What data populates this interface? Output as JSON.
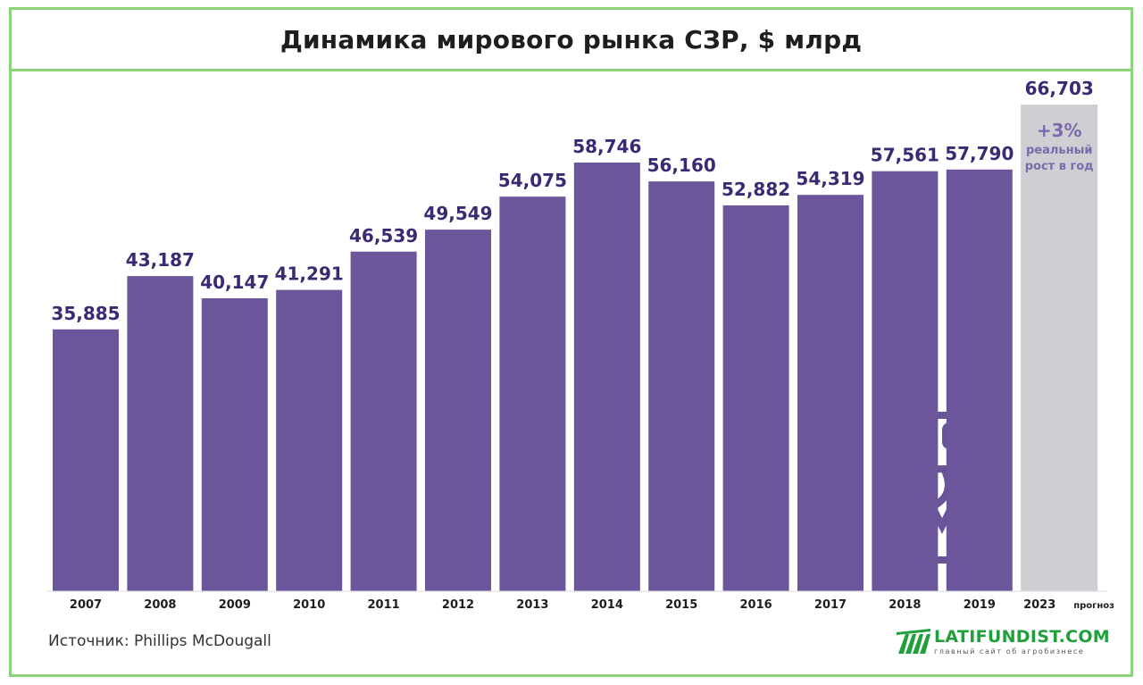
{
  "chart_data": {
    "type": "bar",
    "title": "Динамика мирового рынка СЗР, $ млрд",
    "categories": [
      "2007",
      "2008",
      "2009",
      "2010",
      "2011",
      "2012",
      "2013",
      "2014",
      "2015",
      "2016",
      "2017",
      "2018",
      "2019",
      "2023"
    ],
    "values": [
      35.885,
      43.187,
      40.147,
      41.291,
      46.539,
      49.549,
      54.075,
      58.746,
      56.16,
      52.882,
      54.319,
      57.561,
      57.79,
      66.703
    ],
    "value_labels": [
      "35,885",
      "43,187",
      "40,147",
      "41,291",
      "46,539",
      "49,549",
      "54,075",
      "58,746",
      "56,160",
      "52,882",
      "54,319",
      "57,561",
      "57,790",
      "66,703"
    ],
    "forecast_index": 13,
    "forecast_suffix": "прогноз",
    "forecast_note": {
      "growth": "+3%",
      "line1": "реальный",
      "line2": "рост в год"
    },
    "ylim": [
      0,
      66.703
    ],
    "grid": false,
    "colors": {
      "bar": "#6b569c",
      "forecast_bar": "#cfcfd3",
      "label": "#3b2a73",
      "note": "#7b6aac",
      "border": "#8cd37a"
    }
  },
  "footer": {
    "source": "Источник:  Phillips McDougall",
    "logo_text": "LATIFUNDIST.COM",
    "logo_sub": "главный сайт об агробизнесе",
    "logo_color": "#1fa03a"
  },
  "watermark_icon": "canister-leaf-icon"
}
